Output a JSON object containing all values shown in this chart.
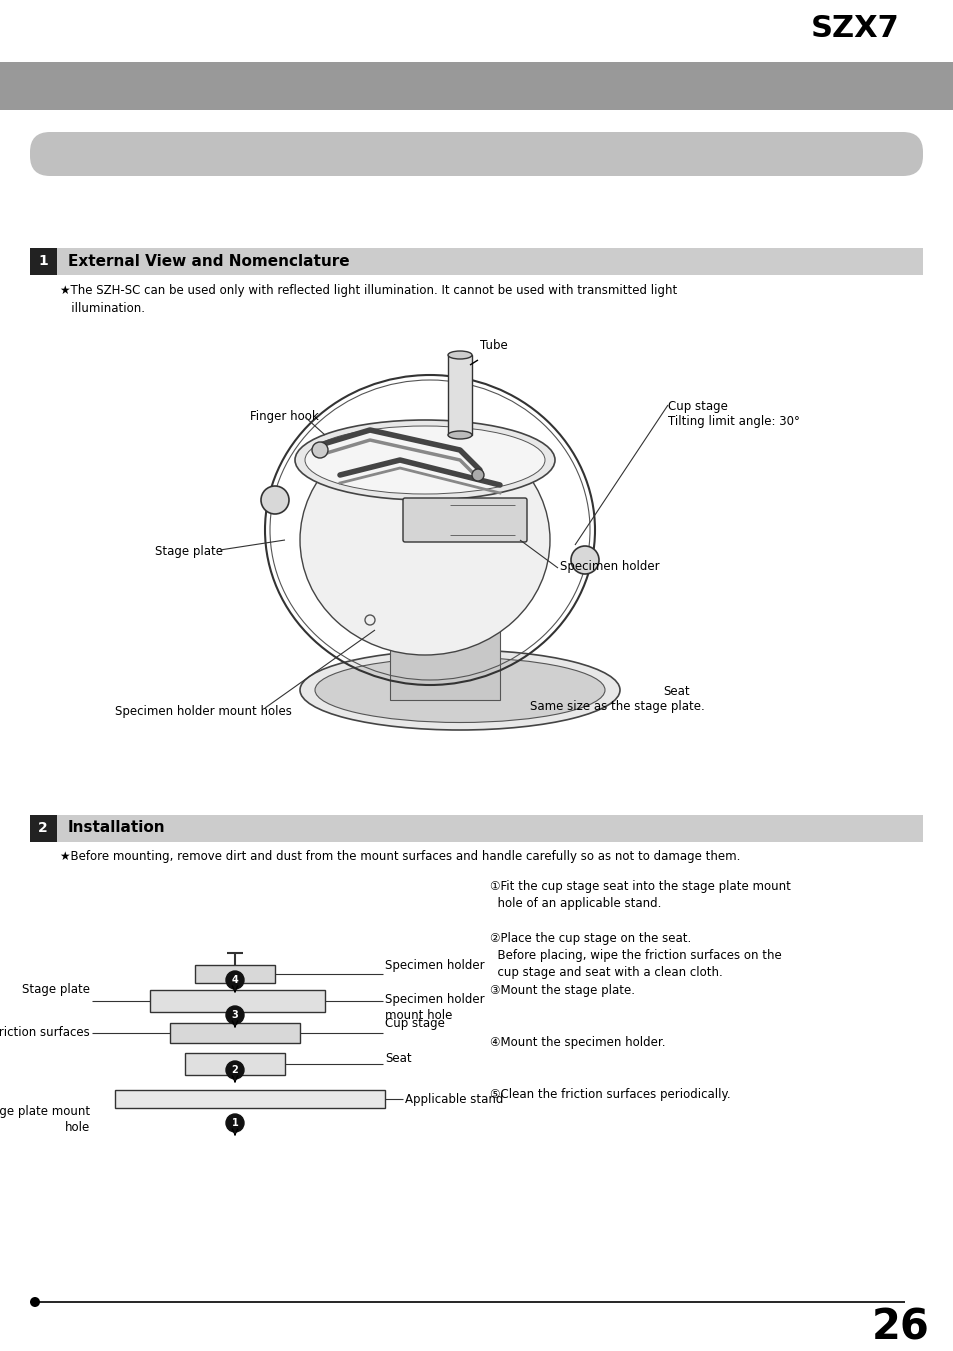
{
  "page_bg": "#ffffff",
  "header_bar_color": "#999999",
  "section_bar_color": "#cccccc",
  "title": "SZX7",
  "section1_title": "External View and Nomenclature",
  "section2_title": "Installation",
  "note1": "★The SZH-SC can be used only with reflected light illumination. It cannot be used with transmitted light\n   illumination.",
  "note2": "★Before mounting, remove dirt and dust from the mount surfaces and handle carefully so as not to damage them.",
  "page_number": "26",
  "diagram1_labels": {
    "finger_hook": "Finger hook",
    "stage_plate": "Stage plate",
    "specimen_holder_mount_holes": "Specimen holder mount holes",
    "tube": "Tube",
    "cup_stage": "Cup stage",
    "tilting_limit": "Tilting limit angle: 30°",
    "specimen_holder": "Specimen holder",
    "seat": "Seat",
    "same_size": "Same size as the stage plate."
  },
  "instructions": [
    "①Fit the cup stage seat into the stage plate mount\n  hole of an applicable stand.",
    "②Place the cup stage on the seat.\n  Before placing, wipe the friction surfaces on the\n  cup stage and seat with a clean cloth.",
    "③Mount the stage plate.",
    "④Mount the specimen holder.",
    "⑤Clean the friction surfaces periodically."
  ]
}
